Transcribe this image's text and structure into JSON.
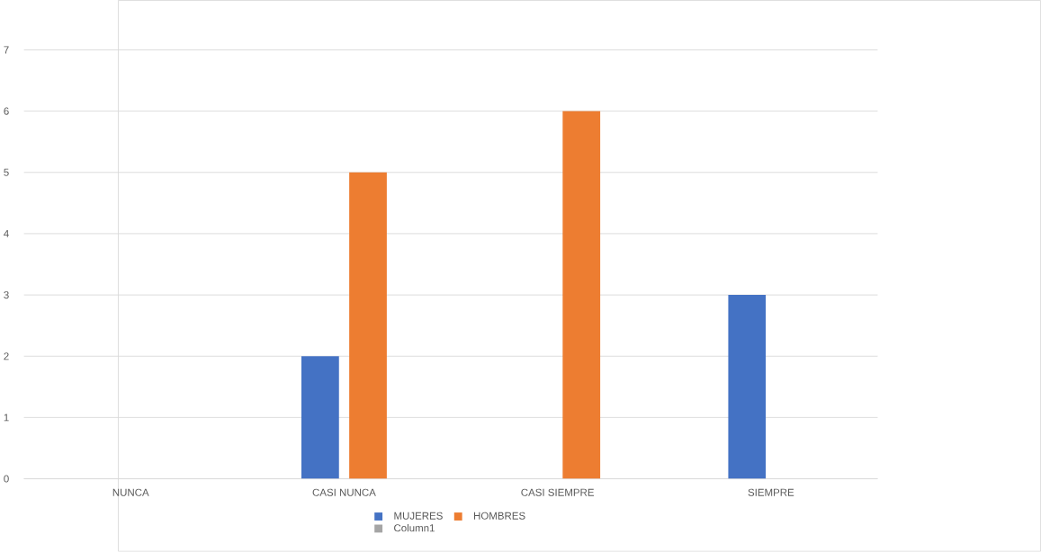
{
  "chart_data": {
    "type": "bar",
    "categories": [
      "NUNCA",
      "CASI NUNCA",
      "CASI SIEMPRE",
      "SIEMPRE"
    ],
    "series": [
      {
        "name": "MUJERES",
        "color": "#4472c4",
        "values": [
          0,
          2,
          0,
          3
        ]
      },
      {
        "name": "HOMBRES",
        "color": "#ed7d31",
        "values": [
          0,
          5,
          6,
          0
        ]
      },
      {
        "name": "Column1",
        "color": "#a5a5a5",
        "values": [
          null,
          null,
          null,
          null
        ]
      }
    ],
    "ylim": [
      0,
      7
    ],
    "yticks": [
      0,
      1,
      2,
      3,
      4,
      5,
      6,
      7
    ],
    "grid": "y",
    "legend": "bottom"
  }
}
